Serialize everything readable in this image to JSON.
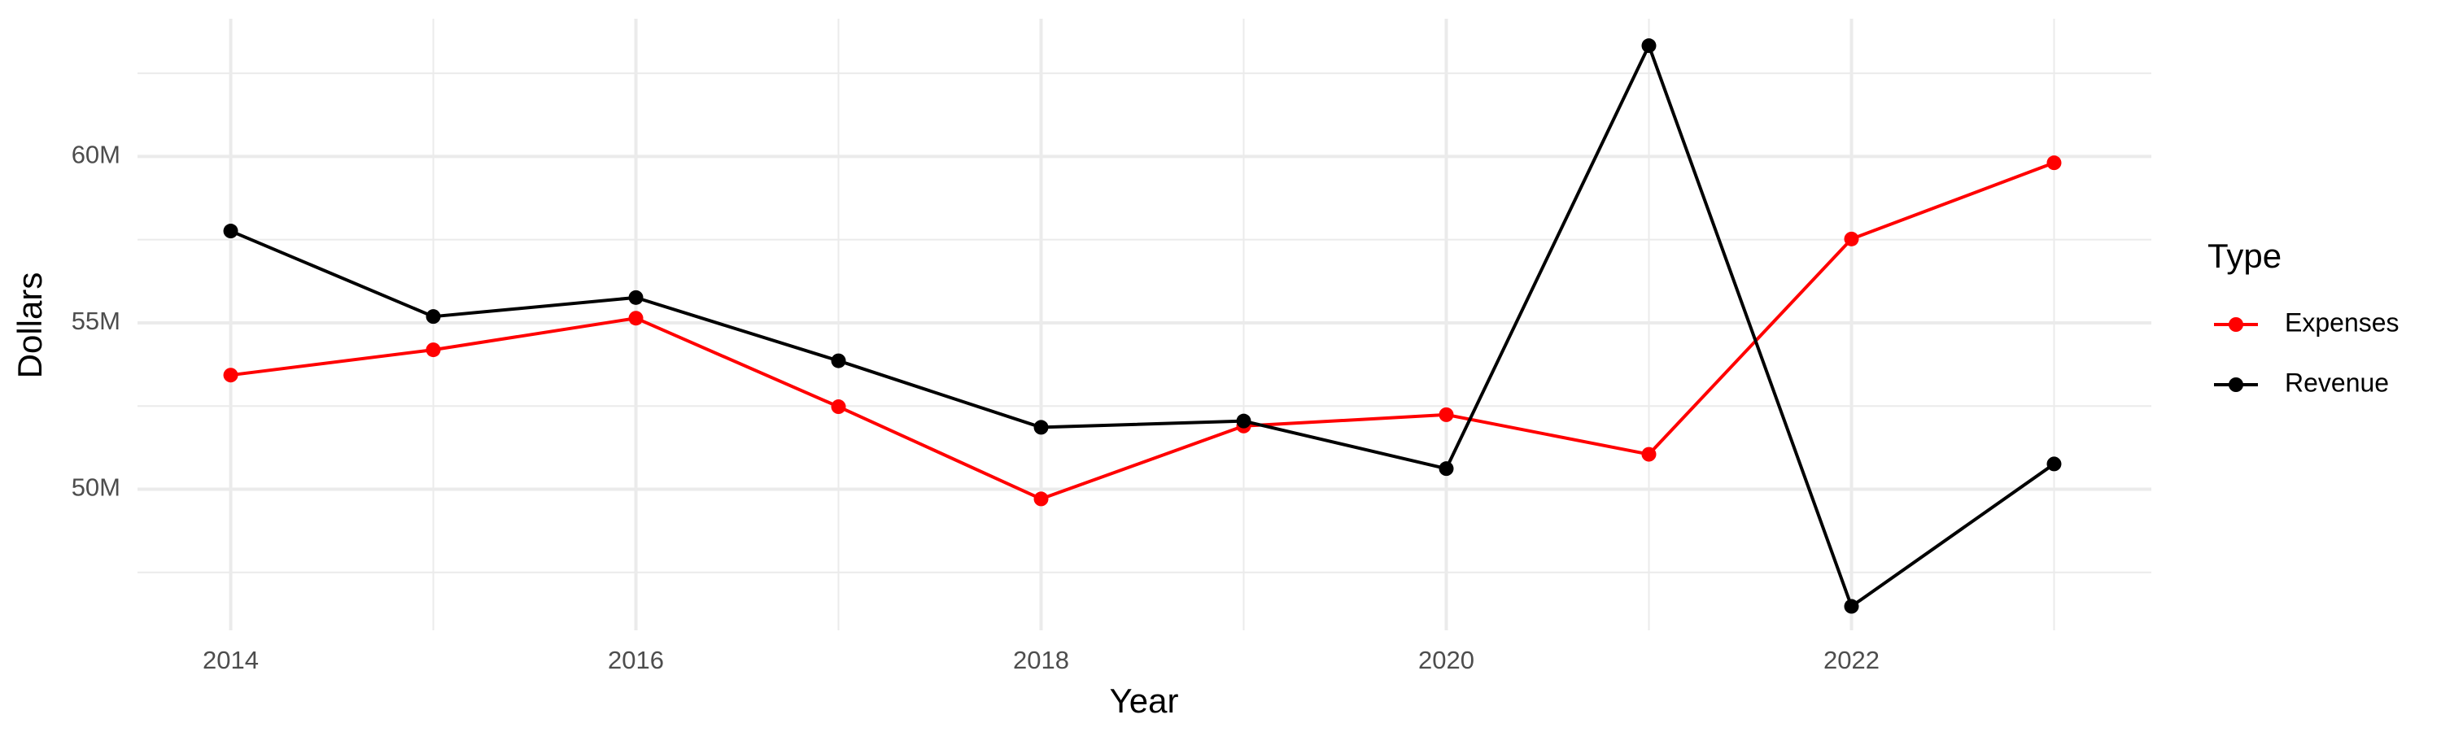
{
  "chart_data": {
    "type": "line",
    "x_label": "Year",
    "y_label": "Dollars",
    "legend_title": "Type",
    "x": [
      2014,
      2015,
      2016,
      2017,
      2018,
      2019,
      2020,
      2021,
      2022,
      2023
    ],
    "series": [
      {
        "name": "Expenses",
        "color": "#ff0000",
        "values": [
          53430000,
          54190000,
          55140000,
          52480000,
          49710000,
          51900000,
          52240000,
          51050000,
          57520000,
          59810000
        ]
      },
      {
        "name": "Revenue",
        "color": "#000000",
        "values": [
          57760000,
          55190000,
          55760000,
          53860000,
          51860000,
          52050000,
          50620000,
          63330000,
          46480000,
          50760000
        ]
      }
    ],
    "xlim": [
      2013.54,
      2023.48
    ],
    "xticks": [
      2014,
      2016,
      2018,
      2020,
      2022
    ],
    "xticks_minor": [
      2015,
      2017,
      2019,
      2021,
      2023
    ],
    "ylim": [
      45760000,
      64140000
    ],
    "yticks": [
      {
        "value": 50000000,
        "label": "50M"
      },
      {
        "value": 55000000,
        "label": "55M"
      },
      {
        "value": 60000000,
        "label": "60M"
      }
    ],
    "yticks_minor": [
      47500000,
      52500000,
      57500000,
      62500000
    ],
    "grid": true,
    "legend_position": "right"
  }
}
